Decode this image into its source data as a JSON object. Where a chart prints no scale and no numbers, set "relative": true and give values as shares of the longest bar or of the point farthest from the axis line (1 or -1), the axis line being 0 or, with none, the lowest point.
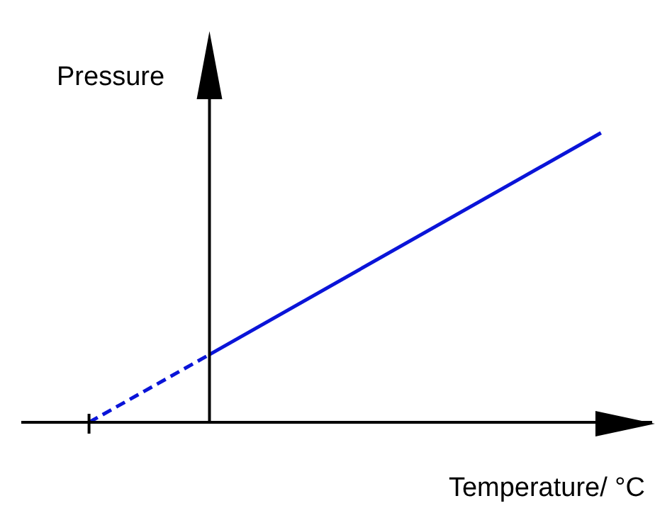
{
  "chart_data": {
    "type": "line",
    "relative": true,
    "xlabel": "Temperature/ °C",
    "ylabel": "Pressure",
    "legend": false,
    "grid": false,
    "marker": "none",
    "categories": [
      null,
      null,
      null,
      null,
      null,
      null,
      null,
      null,
      null,
      null,
      null,
      null,
      null,
      null,
      null,
      null,
      null,
      null
    ],
    "series": [
      {
        "color": "#0a14d8",
        "line_style": "dashed",
        "values": [
          0,
          null,
          null,
          null,
          0.234,
          null,
          null,
          null,
          null,
          null,
          null,
          null,
          null,
          null,
          null,
          null,
          null,
          null
        ]
      },
      {
        "color": "#0a14d8",
        "line_style": "solid",
        "values": [
          null,
          null,
          null,
          null,
          0.234,
          null,
          null,
          null,
          null,
          null,
          null,
          null,
          null,
          null,
          null,
          null,
          null,
          1
        ]
      }
    ]
  }
}
